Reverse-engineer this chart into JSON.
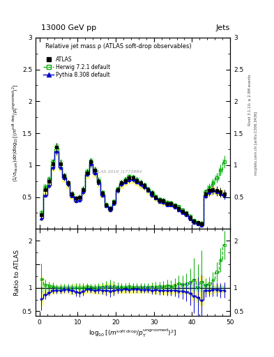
{
  "title_left": "13000 GeV pp",
  "title_right": "Jets",
  "plot_title": "Relative jet mass ρ (ATLAS soft-drop observables)",
  "right_text1": "Rivet 3.1.10; ≥ 2.9M events",
  "right_text2": "mcplots.cern.ch [arXiv:1306.3436]",
  "watermark": "ATLAS 2019_I1772884",
  "legend_atlas": "ATLAS",
  "legend_herwig": "Herwig 7.2.1 default",
  "legend_pythia": "Pythia 8.308 default",
  "atlas_color": "#000000",
  "herwig_color": "#00aa00",
  "pythia_color": "#0000cc",
  "herwig_band_inner": "#aaeebb",
  "yellow_band": "#ffff88",
  "ylim_main": [
    0,
    3.0
  ],
  "ylim_ratio": [
    0.4,
    2.25
  ],
  "xmin": -1,
  "xmax": 50,
  "xticks": [
    0,
    10,
    20,
    30,
    40,
    50
  ],
  "yticks_main": [
    0.5,
    1.0,
    1.5,
    2.0,
    2.5,
    3.0
  ],
  "yticks_ratio": [
    0.5,
    1.0,
    1.5,
    2.0
  ],
  "atlas_x": [
    0.5,
    1.5,
    2.5,
    3.5,
    4.5,
    5.5,
    6.5,
    7.5,
    8.5,
    9.5,
    10.5,
    11.5,
    12.5,
    13.5,
    14.5,
    15.5,
    16.5,
    17.5,
    18.5,
    19.5,
    20.5,
    21.5,
    22.5,
    23.5,
    24.5,
    25.5,
    26.5,
    27.5,
    28.5,
    29.5,
    30.5,
    31.5,
    32.5,
    33.5,
    34.5,
    35.5,
    36.5,
    37.5,
    38.5,
    39.5,
    40.5,
    41.5,
    42.5,
    43.5,
    44.5,
    45.5,
    46.5,
    47.5,
    48.5
  ],
  "atlas_y": [
    0.22,
    0.62,
    0.75,
    1.02,
    1.28,
    1.02,
    0.83,
    0.72,
    0.55,
    0.48,
    0.5,
    0.62,
    0.88,
    1.05,
    0.92,
    0.75,
    0.56,
    0.38,
    0.32,
    0.42,
    0.62,
    0.72,
    0.76,
    0.8,
    0.8,
    0.76,
    0.72,
    0.68,
    0.62,
    0.56,
    0.5,
    0.45,
    0.44,
    0.4,
    0.4,
    0.36,
    0.32,
    0.28,
    0.24,
    0.18,
    0.12,
    0.1,
    0.08,
    0.55,
    0.6,
    0.62,
    0.6,
    0.58,
    0.55
  ],
  "atlas_yerr": [
    0.05,
    0.05,
    0.05,
    0.06,
    0.07,
    0.06,
    0.05,
    0.05,
    0.04,
    0.04,
    0.04,
    0.05,
    0.05,
    0.06,
    0.06,
    0.05,
    0.04,
    0.03,
    0.03,
    0.04,
    0.04,
    0.05,
    0.05,
    0.05,
    0.05,
    0.05,
    0.05,
    0.04,
    0.04,
    0.04,
    0.04,
    0.04,
    0.04,
    0.04,
    0.04,
    0.04,
    0.04,
    0.04,
    0.04,
    0.04,
    0.04,
    0.04,
    0.04,
    0.06,
    0.06,
    0.07,
    0.07,
    0.07,
    0.07
  ],
  "herwig_x": [
    0.5,
    1.5,
    2.5,
    3.5,
    4.5,
    5.5,
    6.5,
    7.5,
    8.5,
    9.5,
    10.5,
    11.5,
    12.5,
    13.5,
    14.5,
    15.5,
    16.5,
    17.5,
    18.5,
    19.5,
    20.5,
    21.5,
    22.5,
    23.5,
    24.5,
    25.5,
    26.5,
    27.5,
    28.5,
    29.5,
    30.5,
    31.5,
    32.5,
    33.5,
    34.5,
    35.5,
    36.5,
    37.5,
    38.5,
    39.5,
    40.5,
    41.5,
    42.5,
    43.5,
    44.5,
    45.5,
    46.5,
    47.5,
    48.5
  ],
  "herwig_y": [
    0.26,
    0.66,
    0.78,
    1.05,
    1.28,
    1.02,
    0.83,
    0.72,
    0.55,
    0.48,
    0.5,
    0.62,
    0.9,
    1.06,
    0.92,
    0.76,
    0.57,
    0.39,
    0.33,
    0.43,
    0.63,
    0.73,
    0.77,
    0.82,
    0.81,
    0.77,
    0.73,
    0.69,
    0.63,
    0.57,
    0.51,
    0.46,
    0.45,
    0.42,
    0.41,
    0.38,
    0.35,
    0.3,
    0.26,
    0.2,
    0.14,
    0.1,
    0.09,
    0.58,
    0.65,
    0.72,
    0.8,
    0.92,
    1.05
  ],
  "herwig_yerr": [
    0.04,
    0.04,
    0.04,
    0.05,
    0.06,
    0.05,
    0.04,
    0.04,
    0.03,
    0.03,
    0.03,
    0.04,
    0.04,
    0.05,
    0.05,
    0.04,
    0.03,
    0.03,
    0.03,
    0.03,
    0.04,
    0.04,
    0.04,
    0.04,
    0.04,
    0.04,
    0.04,
    0.04,
    0.03,
    0.03,
    0.03,
    0.03,
    0.03,
    0.03,
    0.03,
    0.03,
    0.03,
    0.03,
    0.03,
    0.03,
    0.03,
    0.03,
    0.03,
    0.05,
    0.06,
    0.07,
    0.08,
    0.09,
    0.1
  ],
  "pythia_x": [
    0.5,
    1.5,
    2.5,
    3.5,
    4.5,
    5.5,
    6.5,
    7.5,
    8.5,
    9.5,
    10.5,
    11.5,
    12.5,
    13.5,
    14.5,
    15.5,
    16.5,
    17.5,
    18.5,
    19.5,
    20.5,
    21.5,
    22.5,
    23.5,
    24.5,
    25.5,
    26.5,
    27.5,
    28.5,
    29.5,
    30.5,
    31.5,
    32.5,
    33.5,
    34.5,
    35.5,
    36.5,
    37.5,
    38.5,
    39.5,
    40.5,
    41.5,
    42.5,
    43.5,
    44.5,
    45.5,
    46.5,
    47.5,
    48.5
  ],
  "pythia_y": [
    0.17,
    0.53,
    0.68,
    0.97,
    1.22,
    0.97,
    0.8,
    0.7,
    0.52,
    0.44,
    0.45,
    0.58,
    0.86,
    1.02,
    0.88,
    0.72,
    0.53,
    0.36,
    0.3,
    0.4,
    0.6,
    0.7,
    0.74,
    0.77,
    0.78,
    0.74,
    0.7,
    0.66,
    0.6,
    0.53,
    0.48,
    0.43,
    0.42,
    0.38,
    0.38,
    0.34,
    0.3,
    0.26,
    0.22,
    0.16,
    0.1,
    0.08,
    0.06,
    0.52,
    0.57,
    0.6,
    0.58,
    0.55,
    0.52
  ],
  "pythia_yerr": [
    0.04,
    0.04,
    0.04,
    0.05,
    0.06,
    0.05,
    0.04,
    0.04,
    0.03,
    0.03,
    0.03,
    0.04,
    0.04,
    0.05,
    0.05,
    0.04,
    0.03,
    0.03,
    0.03,
    0.03,
    0.04,
    0.04,
    0.04,
    0.04,
    0.04,
    0.04,
    0.04,
    0.04,
    0.03,
    0.03,
    0.03,
    0.03,
    0.03,
    0.03,
    0.03,
    0.03,
    0.03,
    0.03,
    0.03,
    0.03,
    0.03,
    0.03,
    0.03,
    0.05,
    0.05,
    0.06,
    0.06,
    0.06,
    0.06
  ],
  "atlas_band_y": [
    0.2,
    0.59,
    0.72,
    0.98,
    1.23,
    0.98,
    0.8,
    0.69,
    0.52,
    0.46,
    0.48,
    0.59,
    0.85,
    1.01,
    0.88,
    0.72,
    0.54,
    0.37,
    0.31,
    0.4,
    0.6,
    0.69,
    0.73,
    0.77,
    0.77,
    0.73,
    0.69,
    0.65,
    0.59,
    0.54,
    0.48,
    0.43,
    0.42,
    0.38,
    0.38,
    0.35,
    0.31,
    0.27,
    0.23,
    0.17,
    0.11,
    0.09,
    0.07,
    0.53,
    0.58,
    0.6,
    0.58,
    0.56,
    0.53
  ],
  "atlas_band_lo": [
    0.14,
    0.53,
    0.65,
    0.91,
    1.14,
    0.91,
    0.74,
    0.64,
    0.47,
    0.42,
    0.44,
    0.54,
    0.79,
    0.94,
    0.81,
    0.66,
    0.49,
    0.33,
    0.28,
    0.37,
    0.56,
    0.64,
    0.68,
    0.71,
    0.71,
    0.68,
    0.64,
    0.61,
    0.55,
    0.5,
    0.44,
    0.4,
    0.38,
    0.35,
    0.35,
    0.32,
    0.28,
    0.25,
    0.21,
    0.15,
    0.09,
    0.07,
    0.05,
    0.48,
    0.53,
    0.55,
    0.54,
    0.52,
    0.49
  ],
  "atlas_band_hi": [
    0.27,
    0.66,
    0.8,
    1.06,
    1.33,
    1.06,
    0.87,
    0.75,
    0.58,
    0.51,
    0.53,
    0.65,
    0.92,
    1.09,
    0.96,
    0.79,
    0.6,
    0.41,
    0.35,
    0.45,
    0.65,
    0.75,
    0.79,
    0.83,
    0.83,
    0.79,
    0.75,
    0.7,
    0.64,
    0.59,
    0.53,
    0.47,
    0.46,
    0.42,
    0.42,
    0.39,
    0.35,
    0.3,
    0.26,
    0.2,
    0.14,
    0.12,
    0.1,
    0.59,
    0.64,
    0.66,
    0.63,
    0.61,
    0.58
  ],
  "herwig_band_lo": [
    0.22,
    0.62,
    0.74,
    1.0,
    1.22,
    0.97,
    0.79,
    0.68,
    0.52,
    0.46,
    0.47,
    0.59,
    0.86,
    1.01,
    0.87,
    0.72,
    0.54,
    0.37,
    0.31,
    0.41,
    0.6,
    0.7,
    0.73,
    0.78,
    0.77,
    0.73,
    0.69,
    0.66,
    0.6,
    0.54,
    0.48,
    0.44,
    0.43,
    0.4,
    0.39,
    0.36,
    0.33,
    0.28,
    0.25,
    0.19,
    0.13,
    0.09,
    0.08,
    0.55,
    0.62,
    0.68,
    0.76,
    0.87,
    1.0
  ],
  "herwig_band_hi": [
    0.3,
    0.7,
    0.82,
    1.1,
    1.34,
    1.08,
    0.88,
    0.76,
    0.58,
    0.51,
    0.53,
    0.66,
    0.94,
    1.11,
    0.97,
    0.81,
    0.6,
    0.41,
    0.35,
    0.46,
    0.66,
    0.77,
    0.81,
    0.86,
    0.85,
    0.81,
    0.77,
    0.72,
    0.66,
    0.6,
    0.54,
    0.49,
    0.47,
    0.44,
    0.43,
    0.4,
    0.37,
    0.32,
    0.28,
    0.22,
    0.16,
    0.11,
    0.1,
    0.62,
    0.69,
    0.76,
    0.84,
    0.97,
    1.1
  ]
}
